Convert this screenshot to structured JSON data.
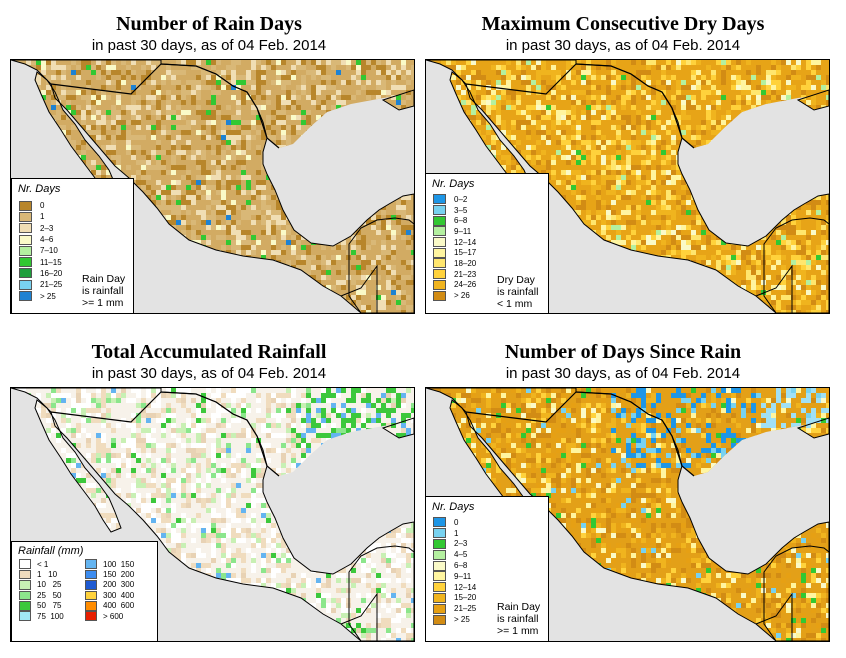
{
  "panels": [
    {
      "title": "Number of Rain Days",
      "subtitle": "in past 30 days, as of  04 Feb. 2014"
    },
    {
      "title": "Maximum Consecutive Dry Days",
      "subtitle": "in past 30 days, as of  04 Feb. 2014"
    },
    {
      "title": "Total Accumulated Rainfall",
      "subtitle": "in past 30 days, as of  04 Feb. 2014"
    },
    {
      "title": "Number of Days Since Rain",
      "subtitle": "in past 30 days, as of  04 Feb. 2014"
    }
  ],
  "legend_rain_days": {
    "title": "Nr. Days",
    "items": [
      {
        "label": "0",
        "color": "#b8862b"
      },
      {
        "label": "1",
        "color": "#d9b877"
      },
      {
        "label": "2–3",
        "color": "#f0deb4"
      },
      {
        "label": "4–6",
        "color": "#fafac8"
      },
      {
        "label": "7–10",
        "color": "#b4f0a0"
      },
      {
        "label": "11–15",
        "color": "#32c832"
      },
      {
        "label": "16–20",
        "color": "#1e9e3c"
      },
      {
        "label": "21–25",
        "color": "#78d2f0"
      },
      {
        "label": "> 25",
        "color": "#1e82d2"
      }
    ],
    "note": [
      "Rain Day",
      "is rainfall",
      ">= 1 mm"
    ]
  },
  "legend_dry_days": {
    "title": "Nr. Days",
    "items": [
      {
        "label": "0–2",
        "color": "#1e96e6"
      },
      {
        "label": "3–5",
        "color": "#78d2f0"
      },
      {
        "label": "6–8",
        "color": "#32c832"
      },
      {
        "label": "9–11",
        "color": "#b4f0a0"
      },
      {
        "label": "12–14",
        "color": "#fafac8"
      },
      {
        "label": "15–17",
        "color": "#fff5a0"
      },
      {
        "label": "18–20",
        "color": "#ffe66e"
      },
      {
        "label": "21–23",
        "color": "#ffd23c"
      },
      {
        "label": "24–26",
        "color": "#f0b41e"
      },
      {
        "label": "> 26",
        "color": "#d28c14"
      }
    ],
    "note": [
      "Dry Day",
      "is rainfall",
      "< 1 mm"
    ]
  },
  "legend_rainfall": {
    "title": "Rainfall (mm)",
    "left": [
      {
        "label": "< 1",
        "color": "#ffffff"
      },
      {
        "label": "1   10",
        "color": "#f0dcbe"
      },
      {
        "label": "10   25",
        "color": "#c8f0b4"
      },
      {
        "label": "25   50",
        "color": "#8ce68c"
      },
      {
        "label": "50   75",
        "color": "#3cc83c"
      },
      {
        "label": "75  100",
        "color": "#a0e6f5"
      }
    ],
    "right": [
      {
        "label": "100  150",
        "color": "#64b4f0"
      },
      {
        "label": "150  200",
        "color": "#3c8cf0"
      },
      {
        "label": "200  300",
        "color": "#1e5ad2"
      },
      {
        "label": "300  400",
        "color": "#ffd23c"
      },
      {
        "label": "400  600",
        "color": "#ff8c00"
      },
      {
        "label": "> 600",
        "color": "#e61e00"
      }
    ]
  },
  "legend_since_rain": {
    "title": "Nr. Days",
    "items": [
      {
        "label": "0",
        "color": "#1e96e6"
      },
      {
        "label": "1",
        "color": "#78d2f0"
      },
      {
        "label": "2–3",
        "color": "#32c832"
      },
      {
        "label": "4–5",
        "color": "#b4f0a0"
      },
      {
        "label": "6–8",
        "color": "#fafac8"
      },
      {
        "label": "9–11",
        "color": "#fff5a0"
      },
      {
        "label": "12–14",
        "color": "#ffd23c"
      },
      {
        "label": "15–20",
        "color": "#f0b41e"
      },
      {
        "label": "21–25",
        "color": "#e6a014"
      },
      {
        "label": "> 25",
        "color": "#d28c14"
      }
    ],
    "note": [
      "Rain Day",
      "is rainfall",
      ">= 1 mm"
    ]
  },
  "map_colors": {
    "ocean": "#e3e3e3",
    "rain_days_land": "#d2ab63",
    "dry_days_land": "#e7a417",
    "rainfall_land": "#f7f2ea",
    "since_rain_land": "#e3a018"
  }
}
